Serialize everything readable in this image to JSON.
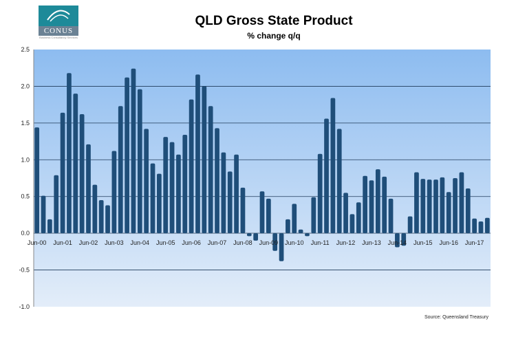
{
  "logo": {
    "name": "CONUS",
    "tagline": "Business Consultancy Services"
  },
  "chart_data": {
    "type": "bar",
    "title": "QLD Gross State Product",
    "subtitle": "% change q/q",
    "source": "Source: Queensland Treasury",
    "xlabel": "",
    "ylabel": "",
    "ylim": [
      -1.0,
      2.5
    ],
    "yticks": [
      "2.5",
      "2.0",
      "1.5",
      "1.0",
      "0.5",
      "0.0",
      "-0.5",
      "-1.0"
    ],
    "xtick_labels": [
      "Jun-00",
      "Jun-01",
      "Jun-02",
      "Jun-03",
      "Jun-04",
      "Jun-05",
      "Jun-06",
      "Jun-07",
      "Jun-08",
      "Jun-09",
      "Jun-10",
      "Jun-11",
      "Jun-12",
      "Jun-13",
      "Jun-14",
      "Jun-15",
      "Jun-16",
      "Jun-17"
    ],
    "grid": true,
    "bar_color": "#1f4e79",
    "values": [
      1.44,
      0.51,
      0.19,
      0.79,
      1.64,
      2.18,
      1.9,
      1.62,
      1.21,
      0.66,
      0.45,
      0.38,
      1.12,
      1.73,
      2.12,
      2.24,
      1.96,
      1.42,
      0.95,
      0.81,
      1.31,
      1.24,
      1.07,
      1.34,
      1.82,
      2.16,
      2.0,
      1.73,
      1.43,
      1.1,
      0.84,
      1.07,
      0.62,
      -0.04,
      -0.1,
      0.57,
      0.47,
      -0.24,
      -0.38,
      0.19,
      0.4,
      0.05,
      -0.04,
      0.49,
      1.08,
      1.56,
      1.84,
      1.42,
      0.55,
      0.26,
      0.42,
      0.78,
      0.72,
      0.87,
      0.77,
      0.47,
      -0.19,
      -0.17,
      0.23,
      0.83,
      0.74,
      0.73,
      0.73,
      0.76,
      0.56,
      0.75,
      0.83,
      0.61,
      0.2,
      0.16,
      0.21
    ]
  }
}
